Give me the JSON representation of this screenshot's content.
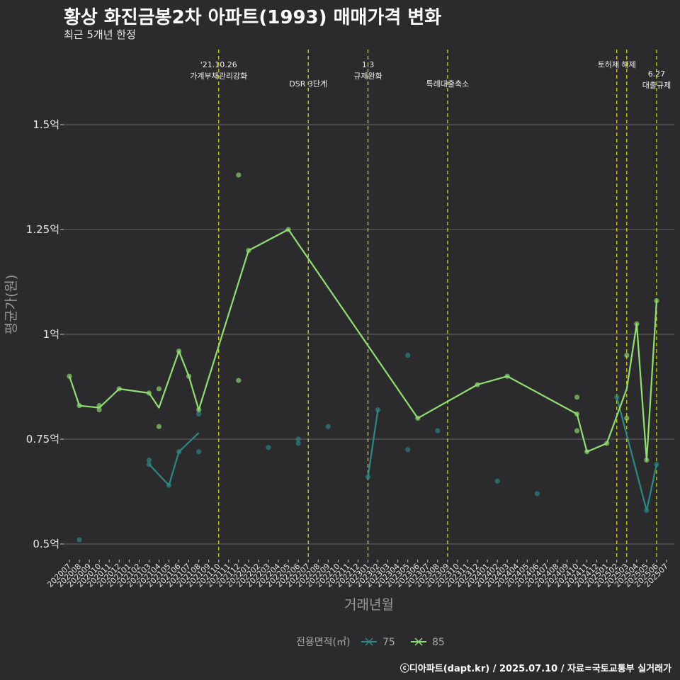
{
  "title": "황상 화진금봉2차 아파트(1993) 매매가격 변화",
  "subtitle": "최근 5개년 한정",
  "caption": "ⓒ디아파트(dapt.kr) / 2025.07.10 / 자료=국토교통부 실거래가",
  "chart_data": {
    "type": "line",
    "xlabel": "거래년월",
    "ylabel": "평균가(원)",
    "ylim": [
      0.45,
      1.7
    ],
    "y_unit": "억",
    "y_ticks": [
      0.5,
      0.75,
      1,
      1.25,
      1.5
    ],
    "y_tick_labels": [
      "0.5억",
      "0.75억",
      "1억",
      "1.25억",
      "1.5억"
    ],
    "categories": [
      "202007",
      "202008",
      "202009",
      "202010",
      "202011",
      "202012",
      "202101",
      "202102",
      "202103",
      "202104",
      "202105",
      "202106",
      "202107",
      "202108",
      "202109",
      "202110",
      "202111",
      "202112",
      "202201",
      "202202",
      "202203",
      "202204",
      "202205",
      "202206",
      "202207",
      "202208",
      "202209",
      "202210",
      "202211",
      "202212",
      "202301",
      "202302",
      "202303",
      "202304",
      "202305",
      "202306",
      "202307",
      "202308",
      "202309",
      "202310",
      "202311",
      "202312",
      "202401",
      "202402",
      "202403",
      "202404",
      "202405",
      "202406",
      "202407",
      "202408",
      "202409",
      "202410",
      "202411",
      "202412",
      "202501",
      "202502",
      "202503",
      "202504",
      "202505",
      "202506",
      "202507"
    ],
    "grid": true,
    "legend": {
      "title": "전용면적(㎡)",
      "position": "bottom"
    },
    "events": [
      {
        "x": "202110",
        "label": "'21.10.26\n가계부채관리강화",
        "row": 0
      },
      {
        "x": "202207",
        "label": "DSR 3단계",
        "row": 1
      },
      {
        "x": "202301",
        "label": "1.3\n규제완화",
        "row": 0
      },
      {
        "x": "202309",
        "label": "특례대출축소",
        "row": 1
      },
      {
        "x": "202502",
        "label": "토허제 해제",
        "row": 0
      },
      {
        "x": "202503",
        "label": "",
        "row": 0
      },
      {
        "x": "202506",
        "label": "6.27\n대출규제",
        "row": 1
      }
    ],
    "series": [
      {
        "name": "75",
        "color": "#2a8a8a",
        "line": [
          [
            "202103",
            0.69
          ],
          [
            "202105",
            0.64
          ],
          [
            "202106",
            0.72
          ],
          [
            "202108",
            0.765
          ]
        ],
        "line2": [
          [
            "202301",
            0.66
          ],
          [
            "202302",
            0.82
          ]
        ],
        "line3": [
          [
            "202502",
            0.85
          ],
          [
            "202505",
            0.58
          ],
          [
            "202506",
            0.69
          ]
        ],
        "points": [
          [
            "202008",
            0.51
          ],
          [
            "202103",
            0.7
          ],
          [
            "202103",
            0.69
          ],
          [
            "202105",
            0.64
          ],
          [
            "202106",
            0.72
          ],
          [
            "202108",
            0.72
          ],
          [
            "202108",
            0.81
          ],
          [
            "202203",
            0.73
          ],
          [
            "202206",
            0.75
          ],
          [
            "202206",
            0.74
          ],
          [
            "202209",
            0.78
          ],
          [
            "202301",
            0.66
          ],
          [
            "202302",
            0.82
          ],
          [
            "202305",
            0.95
          ],
          [
            "202305",
            0.725
          ],
          [
            "202308",
            0.77
          ],
          [
            "202402",
            0.65
          ],
          [
            "202406",
            0.62
          ],
          [
            "202502",
            0.85
          ],
          [
            "202505",
            0.58
          ],
          [
            "202506",
            0.69
          ]
        ]
      },
      {
        "name": "85",
        "color": "#90e070",
        "line": [
          [
            "202007",
            0.9
          ],
          [
            "202008",
            0.83
          ],
          [
            "202010",
            0.825
          ],
          [
            "202012",
            0.87
          ],
          [
            "202103",
            0.86
          ],
          [
            "202104",
            0.825
          ],
          [
            "202106",
            0.96
          ],
          [
            "202107",
            0.9
          ],
          [
            "202108",
            0.82
          ],
          [
            "202201",
            1.2
          ],
          [
            "202205",
            1.25
          ],
          [
            "202306",
            0.8
          ],
          [
            "202312",
            0.88
          ],
          [
            "202403",
            0.9
          ],
          [
            "202410",
            0.81
          ],
          [
            "202411",
            0.72
          ],
          [
            "202501",
            0.74
          ],
          [
            "202503",
            0.87
          ],
          [
            "202504",
            1.025
          ],
          [
            "202505",
            0.7
          ],
          [
            "202506",
            1.08
          ]
        ],
        "points": [
          [
            "202007",
            0.9
          ],
          [
            "202008",
            0.83
          ],
          [
            "202010",
            0.83
          ],
          [
            "202010",
            0.82
          ],
          [
            "202012",
            0.87
          ],
          [
            "202103",
            0.86
          ],
          [
            "202104",
            0.87
          ],
          [
            "202104",
            0.78
          ],
          [
            "202106",
            0.96
          ],
          [
            "202107",
            0.9
          ],
          [
            "202108",
            0.82
          ],
          [
            "202112",
            1.38
          ],
          [
            "202112",
            0.89
          ],
          [
            "202201",
            1.2
          ],
          [
            "202205",
            1.25
          ],
          [
            "202306",
            0.8
          ],
          [
            "202312",
            0.88
          ],
          [
            "202403",
            0.9
          ],
          [
            "202410",
            0.85
          ],
          [
            "202410",
            0.81
          ],
          [
            "202410",
            0.77
          ],
          [
            "202411",
            0.72
          ],
          [
            "202501",
            0.74
          ],
          [
            "202503",
            0.95
          ],
          [
            "202503",
            0.8
          ],
          [
            "202504",
            1.025
          ],
          [
            "202505",
            0.7
          ],
          [
            "202506",
            1.08
          ]
        ]
      }
    ]
  }
}
